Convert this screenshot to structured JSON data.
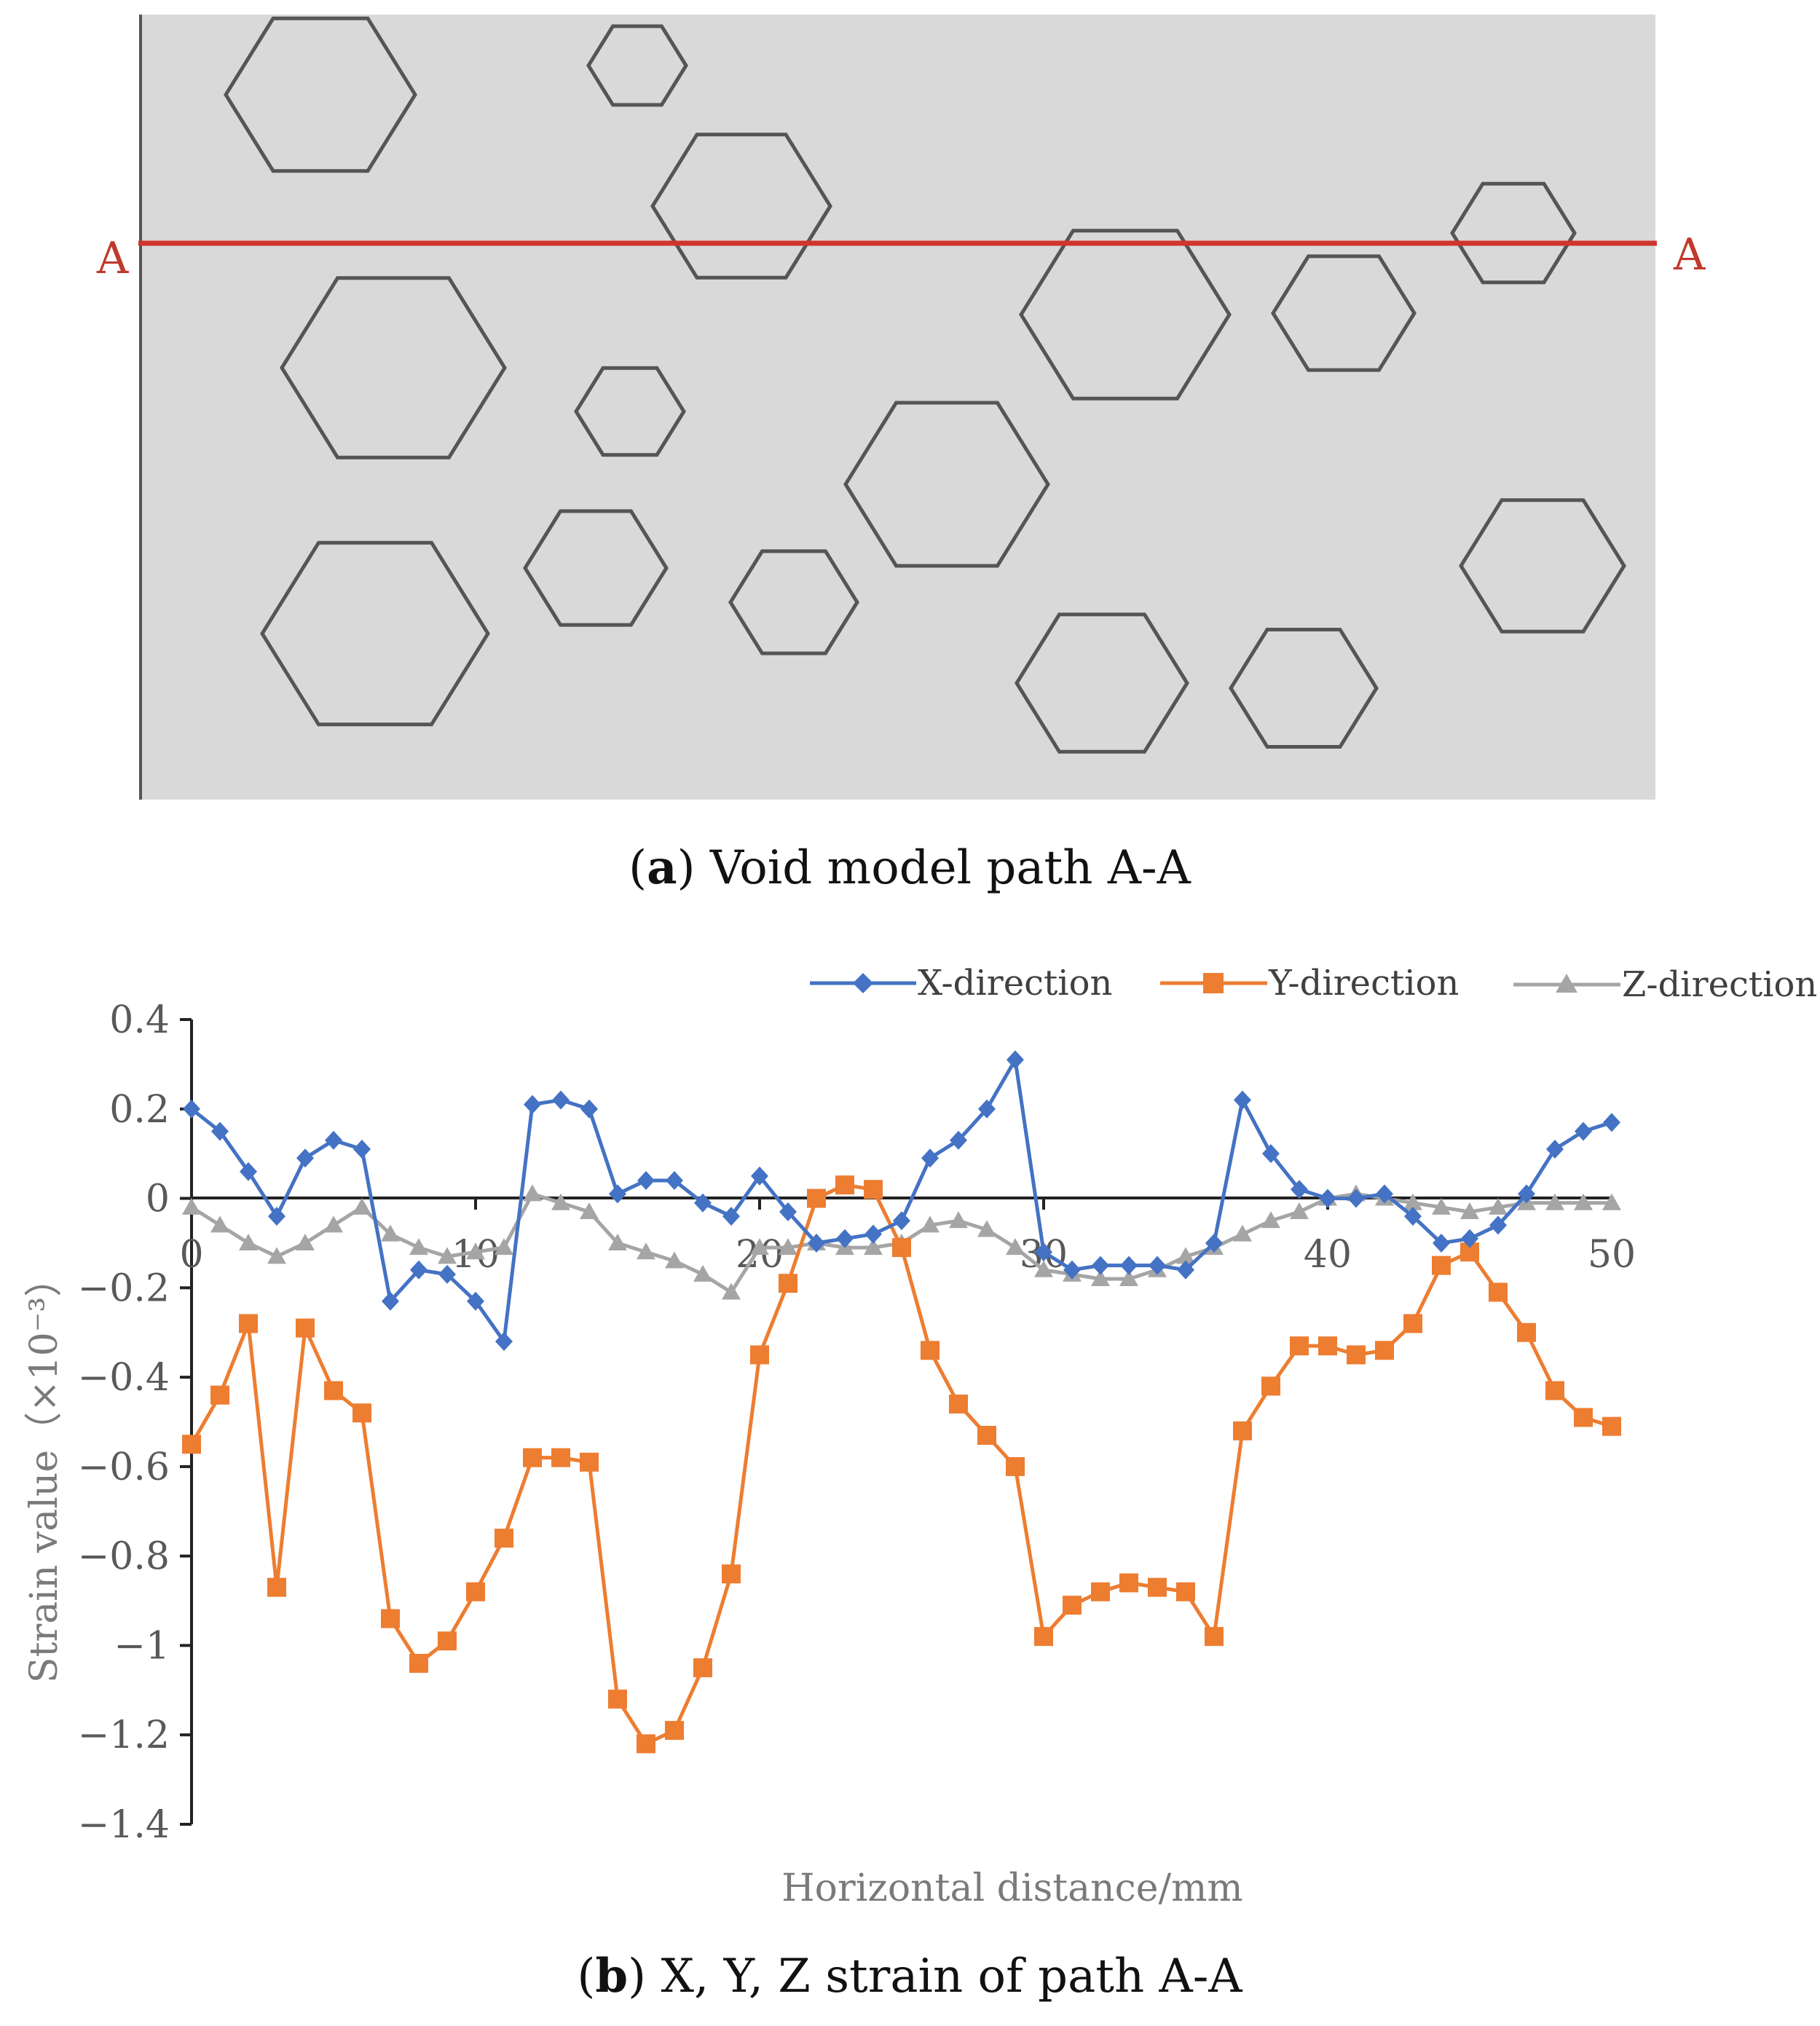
{
  "panel_a": {
    "path_label_left": "A",
    "path_label_right": "A",
    "caption_letter": "a",
    "caption_text": " Void model path A-A",
    "colors": {
      "background": "#d9d9d9",
      "void_stroke": "#555555",
      "path_line": "#d0352b"
    }
  },
  "panel_b": {
    "caption_letter": "b",
    "caption_text": " X, Y, Z strain of path A-A"
  },
  "chart_data": {
    "type": "line",
    "title": "",
    "xlabel": "Horizontal distance/mm",
    "ylabel": "Strain value（×10⁻³）",
    "ylabel_main": "Strain value",
    "ylabel_unit": "（×10⁻³）",
    "xlim": [
      0,
      50
    ],
    "ylim": [
      -1.4,
      0.4
    ],
    "x_ticks": [
      0,
      10,
      20,
      30,
      40,
      50
    ],
    "x_tick_labels": [
      "0",
      "10",
      "20",
      "30",
      "40",
      "50"
    ],
    "y_ticks": [
      0.4,
      0.2,
      0,
      -0.2,
      -0.4,
      -0.6,
      -0.8,
      -1,
      -1.2,
      -1.4
    ],
    "y_tick_labels": [
      "0.4",
      "0.2",
      "0",
      "−0.2",
      "−0.4",
      "−0.6",
      "−0.8",
      "−1",
      "−1.2",
      "−1.4"
    ],
    "grid": false,
    "legend_position": "top-right",
    "x": [
      0,
      1,
      2,
      3,
      4,
      5,
      6,
      7,
      8,
      9,
      10,
      11,
      12,
      13,
      14,
      15,
      16,
      17,
      18,
      19,
      20,
      21,
      22,
      23,
      24,
      25,
      26,
      27,
      28,
      29,
      30,
      31,
      32,
      33,
      34,
      35,
      36,
      37,
      38,
      39,
      40,
      41,
      42,
      43,
      44,
      45,
      46,
      47,
      48,
      49,
      50
    ],
    "series": [
      {
        "name": "X-direction",
        "marker": "diamond",
        "color": "#4472c4",
        "values": [
          0.2,
          0.15,
          0.06,
          -0.04,
          0.09,
          0.13,
          0.11,
          -0.23,
          -0.16,
          -0.17,
          -0.23,
          -0.32,
          0.21,
          0.22,
          0.2,
          0.01,
          0.04,
          0.04,
          -0.01,
          -0.04,
          0.05,
          -0.03,
          -0.1,
          -0.09,
          -0.08,
          -0.05,
          0.09,
          0.13,
          0.2,
          0.31,
          -0.12,
          -0.16,
          -0.15,
          -0.15,
          -0.15,
          -0.16,
          -0.1,
          0.22,
          0.1,
          0.02,
          0.0,
          0.0,
          0.01,
          -0.04,
          -0.1,
          -0.09,
          -0.06,
          0.01,
          0.11,
          0.15,
          0.17
        ]
      },
      {
        "name": "Y-direction",
        "marker": "square",
        "color": "#ed7d31",
        "values": [
          -0.55,
          -0.44,
          -0.28,
          -0.87,
          -0.29,
          -0.43,
          -0.48,
          -0.94,
          -1.04,
          -0.99,
          -0.88,
          -0.76,
          -0.58,
          -0.58,
          -0.59,
          -1.12,
          -1.22,
          -1.19,
          -1.05,
          -0.84,
          -0.35,
          -0.19,
          0.0,
          0.03,
          0.02,
          -0.11,
          -0.34,
          -0.46,
          -0.53,
          -0.6,
          -0.98,
          -0.91,
          -0.88,
          -0.86,
          -0.87,
          -0.88,
          -0.98,
          -0.52,
          -0.42,
          -0.33,
          -0.33,
          -0.35,
          -0.34,
          -0.28,
          -0.15,
          -0.12,
          -0.21,
          -0.3,
          -0.43,
          -0.49,
          -0.51
        ]
      },
      {
        "name": "Z-direction",
        "marker": "triangle",
        "color": "#a5a5a5",
        "values": [
          -0.02,
          -0.06,
          -0.1,
          -0.13,
          -0.1,
          -0.06,
          -0.02,
          -0.08,
          -0.11,
          -0.13,
          -0.12,
          -0.11,
          0.01,
          -0.01,
          -0.03,
          -0.1,
          -0.12,
          -0.14,
          -0.17,
          -0.21,
          -0.11,
          -0.11,
          -0.1,
          -0.11,
          -0.11,
          -0.1,
          -0.06,
          -0.05,
          -0.07,
          -0.11,
          -0.16,
          -0.17,
          -0.18,
          -0.18,
          -0.16,
          -0.13,
          -0.11,
          -0.08,
          -0.05,
          -0.03,
          0.0,
          0.01,
          0.0,
          -0.01,
          -0.02,
          -0.03,
          -0.02,
          -0.01,
          -0.01,
          -0.01,
          -0.01
        ]
      }
    ]
  }
}
